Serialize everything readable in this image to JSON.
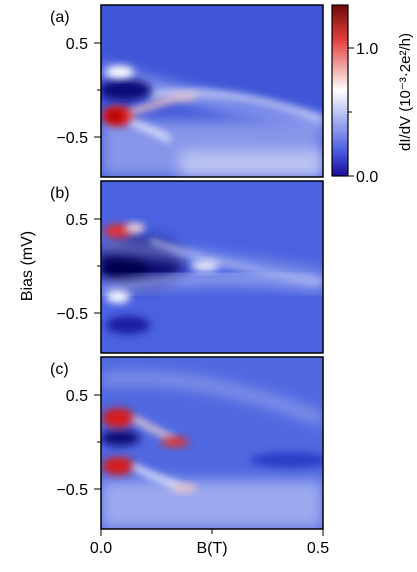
{
  "chart_data": [
    {
      "type": "heatmap",
      "panel_label": "(a)",
      "xlim": [
        0.0,
        0.5
      ],
      "ylim": [
        -0.85,
        0.85
      ],
      "yticks": [
        0.5,
        -0.5
      ],
      "ytick_labels": [
        "0.5",
        "−0.5"
      ],
      "bright_features": [
        {
          "B": 0.02,
          "bias": -0.28,
          "level": 1.55
        },
        {
          "B": 0.08,
          "bias": -0.22,
          "level": 1.2
        },
        {
          "B": 0.17,
          "bias": -0.08,
          "level": 0.85
        },
        {
          "B": 0.02,
          "bias": 0.2,
          "level": 0.85
        },
        {
          "B": 0.02,
          "bias": -0.05,
          "level": 0.05
        }
      ]
    },
    {
      "type": "heatmap",
      "panel_label": "(b)",
      "xlim": [
        0.0,
        0.5
      ],
      "ylim": [
        -0.85,
        0.85
      ],
      "yticks": [
        0.5,
        -0.5
      ],
      "ytick_labels": [
        "0.5",
        "−0.5"
      ],
      "bright_features": [
        {
          "B": 0.04,
          "bias": 0.38,
          "level": 1.5
        },
        {
          "B": 0.02,
          "bias": -0.35,
          "level": 0.8
        },
        {
          "B": 0.22,
          "bias": 0.02,
          "level": 0.75
        },
        {
          "B": 0.03,
          "bias": 0.02,
          "level": 0.05
        }
      ]
    },
    {
      "type": "heatmap",
      "panel_label": "(c)",
      "xlim": [
        0.0,
        0.5
      ],
      "ylim": [
        -0.85,
        0.85
      ],
      "yticks": [
        0.5,
        -0.5
      ],
      "ytick_labels": [
        "0.5",
        "−0.5"
      ],
      "bright_features": [
        {
          "B": 0.02,
          "bias": 0.2,
          "level": 1.6
        },
        {
          "B": 0.02,
          "bias": -0.3,
          "level": 1.55
        },
        {
          "B": 0.16,
          "bias": -0.05,
          "level": 1.35
        },
        {
          "B": 0.19,
          "bias": -0.52,
          "level": 1.0
        },
        {
          "B": 0.02,
          "bias": -0.02,
          "level": 0.05
        }
      ]
    }
  ],
  "shared_axes": {
    "xlabel": "B(T)",
    "ylabel": "Bias (mV)",
    "xtick_labels": [
      "0.0",
      "0.5"
    ]
  },
  "colorbar": {
    "label": "dI/dV (10⁻³·2e²/h)",
    "range": [
      0.0,
      1.6
    ],
    "ticks": [
      1.0,
      0.0
    ],
    "tick_labels": [
      "1.0",
      "0.0"
    ],
    "colors": [
      "#1a0a9a",
      "#ffffff",
      "#c40000",
      "#6e0a0a"
    ]
  }
}
